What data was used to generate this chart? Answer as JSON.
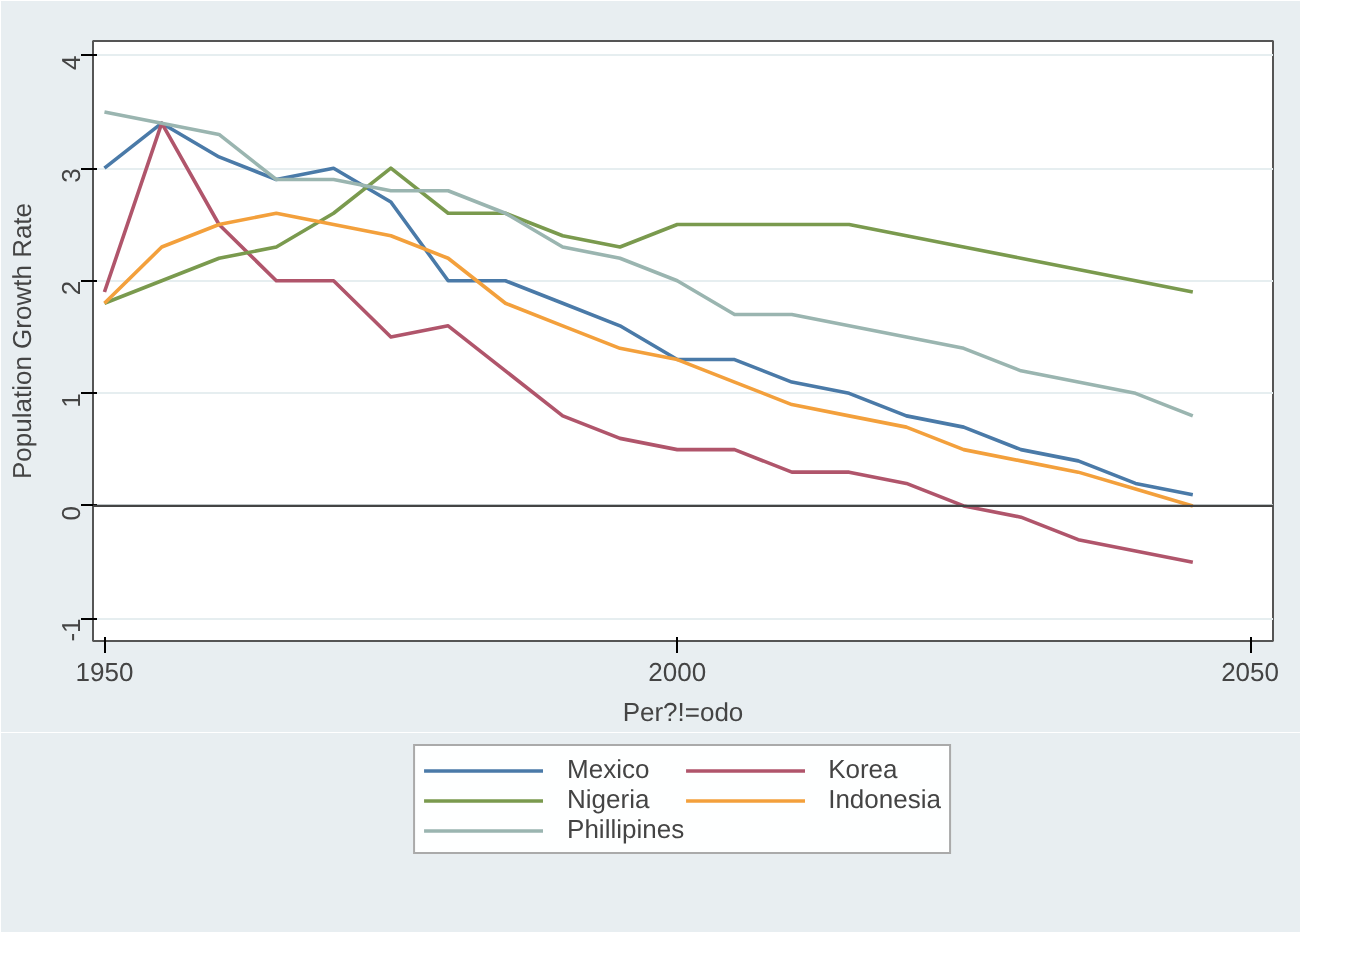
{
  "chart_data": {
    "type": "line",
    "xlabel": "Per?!=odo",
    "ylabel": "Population Growth Rate",
    "x": [
      1950,
      1955,
      1960,
      1965,
      1970,
      1975,
      1980,
      1985,
      1990,
      1995,
      2000,
      2005,
      2010,
      2015,
      2020,
      2025,
      2030,
      2035,
      2040,
      2045
    ],
    "series": [
      {
        "name": "Mexico",
        "color": "#4a7aa8",
        "values": [
          3.0,
          3.4,
          3.1,
          2.9,
          3.0,
          2.7,
          2.0,
          2.0,
          1.8,
          1.6,
          1.3,
          1.3,
          1.1,
          1.0,
          0.8,
          0.7,
          0.5,
          0.4,
          0.2,
          0.1
        ]
      },
      {
        "name": "Korea",
        "color": "#b0556b",
        "values": [
          1.9,
          3.4,
          2.5,
          2.0,
          2.0,
          1.5,
          1.6,
          1.2,
          0.8,
          0.6,
          0.5,
          0.5,
          0.3,
          0.3,
          0.2,
          0.0,
          -0.1,
          -0.3,
          -0.4,
          -0.5
        ]
      },
      {
        "name": "Nigeria",
        "color": "#7a9a4e",
        "values": [
          1.8,
          2.0,
          2.2,
          2.3,
          2.6,
          3.0,
          2.6,
          2.6,
          2.4,
          2.3,
          2.5,
          2.5,
          2.5,
          2.5,
          2.4,
          2.3,
          2.2,
          2.1,
          2.0,
          1.9
        ]
      },
      {
        "name": "Indonesia",
        "color": "#f3a03c",
        "values": [
          1.8,
          2.3,
          2.5,
          2.6,
          2.5,
          2.4,
          2.2,
          1.8,
          1.6,
          1.4,
          1.3,
          1.1,
          0.9,
          0.8,
          0.7,
          0.5,
          0.4,
          0.3,
          0.15,
          0.0
        ]
      },
      {
        "name": "Phillipines",
        "color": "#9ab5b0",
        "values": [
          3.5,
          3.4,
          3.3,
          2.9,
          2.9,
          2.8,
          2.8,
          2.6,
          2.3,
          2.2,
          2.0,
          1.7,
          1.7,
          1.6,
          1.5,
          1.4,
          1.2,
          1.1,
          1.0,
          0.8
        ]
      }
    ],
    "xlim": [
      1949,
      2052
    ],
    "xticks": [
      1950,
      2000,
      2050
    ],
    "ylim": [
      -1.2,
      4.13
    ],
    "yticks": [
      -1,
      0,
      1,
      2,
      3,
      4
    ],
    "ref_lines": [
      {
        "axis": "y",
        "value": 0,
        "color": "#444444"
      }
    ],
    "grid": "y",
    "legend": "bottom",
    "marker": "none",
    "line_style": "solid"
  }
}
